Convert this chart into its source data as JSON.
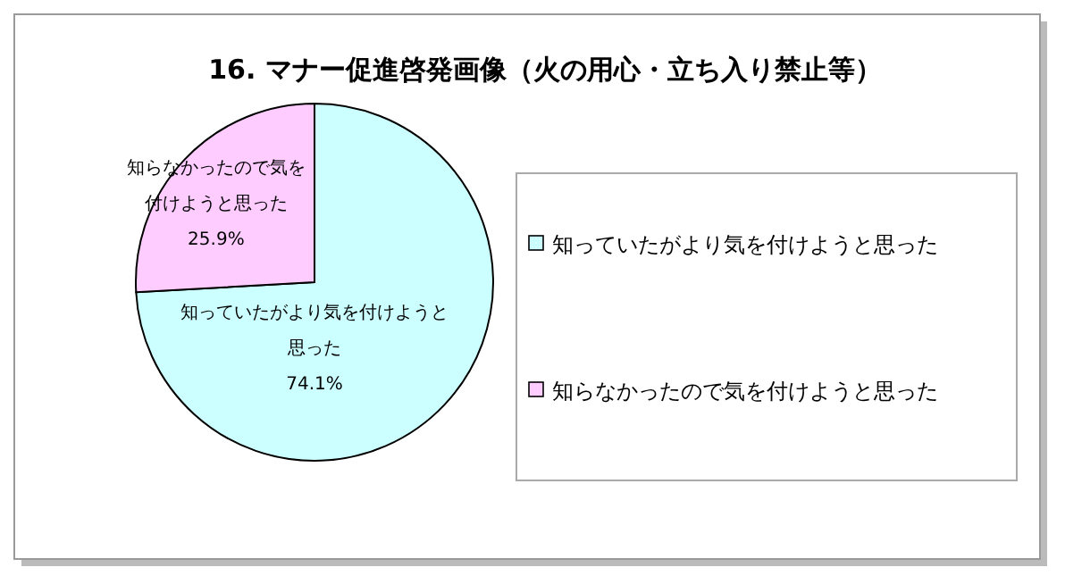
{
  "chart_data": {
    "type": "pie",
    "title": "16. マナー促進啓発画像（火の用心・立ち入り禁止等）",
    "categories": [
      "知っていたがより気を付けようと思った",
      "知らなかったので気を付けようと思った"
    ],
    "values": [
      74.1,
      25.9
    ],
    "colors": [
      "#ccffff",
      "#ffccff"
    ],
    "value_labels": [
      "74.1%",
      "25.9%"
    ],
    "legend": "right"
  }
}
